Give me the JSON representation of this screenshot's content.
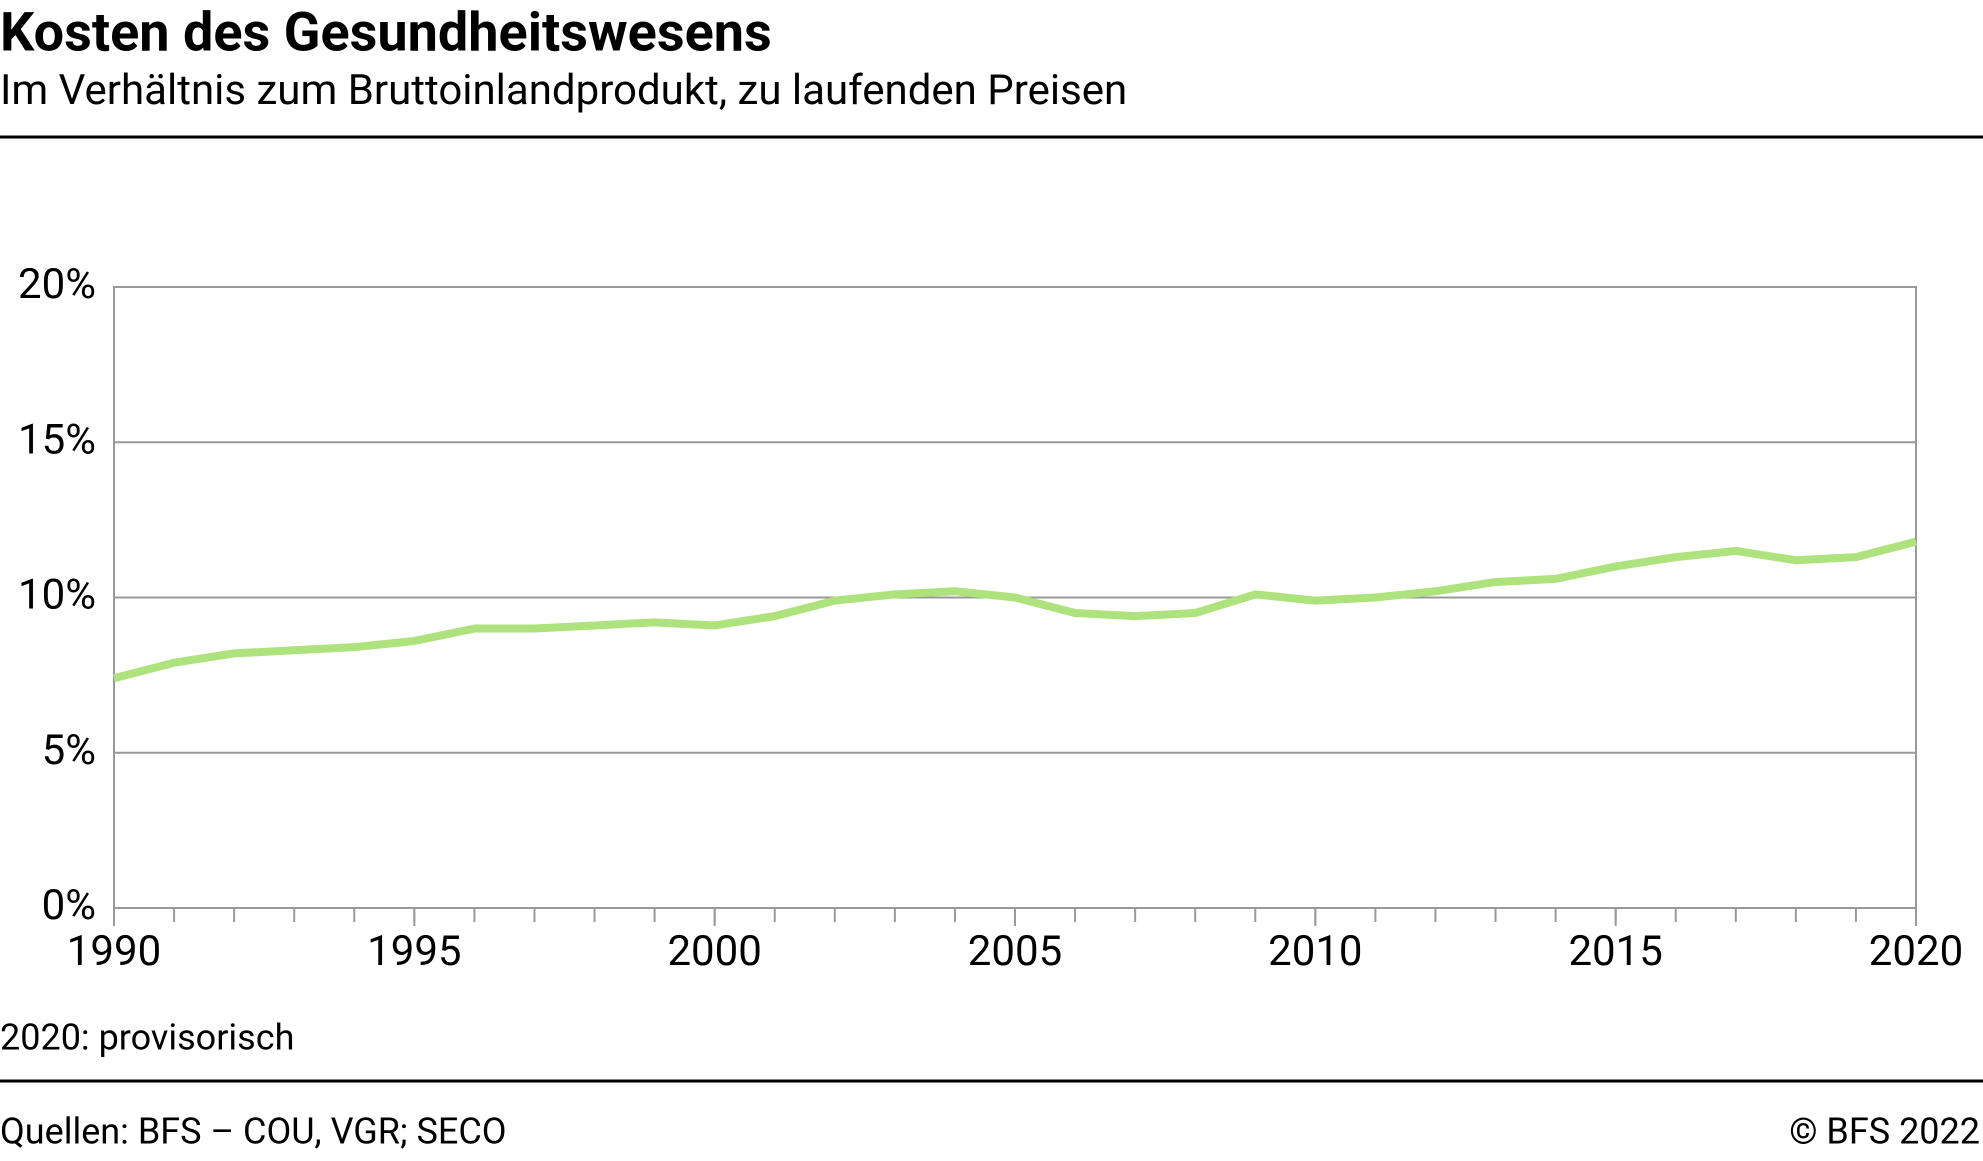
{
  "chart_data": {
    "type": "line",
    "title": "Kosten des Gesundheitswesens",
    "subtitle": "Im Verhältnis zum Bruttoinlandprodukt, zu laufenden Preisen",
    "note": "2020: provisorisch",
    "source": "Quellen: BFS – COU, VGR; SECO",
    "copyright": "© BFS 2022",
    "x": [
      1990,
      1991,
      1992,
      1993,
      1994,
      1995,
      1996,
      1997,
      1998,
      1999,
      2000,
      2001,
      2002,
      2003,
      2004,
      2005,
      2006,
      2007,
      2008,
      2009,
      2010,
      2011,
      2012,
      2013,
      2014,
      2015,
      2016,
      2017,
      2018,
      2019,
      2020
    ],
    "values": [
      7.4,
      7.9,
      8.2,
      8.3,
      8.4,
      8.6,
      9.0,
      9.0,
      9.1,
      9.2,
      9.1,
      9.4,
      9.9,
      10.1,
      10.2,
      10.0,
      9.5,
      9.4,
      9.5,
      10.1,
      9.9,
      10.0,
      10.2,
      10.5,
      10.6,
      11.0,
      11.3,
      11.5,
      11.2,
      11.3,
      11.8
    ],
    "color": "#aee27d",
    "xlim": [
      1990,
      2020
    ],
    "xticks": [
      1990,
      1995,
      2000,
      2005,
      2010,
      2015,
      2020
    ],
    "ylim": [
      0,
      20
    ],
    "yticks": [
      {
        "value": 0,
        "label": "0%"
      },
      {
        "value": 5,
        "label": "5%"
      },
      {
        "value": 10,
        "label": "10%"
      },
      {
        "value": 15,
        "label": "15%"
      },
      {
        "value": 20,
        "label": "20%"
      }
    ],
    "grid": true
  }
}
